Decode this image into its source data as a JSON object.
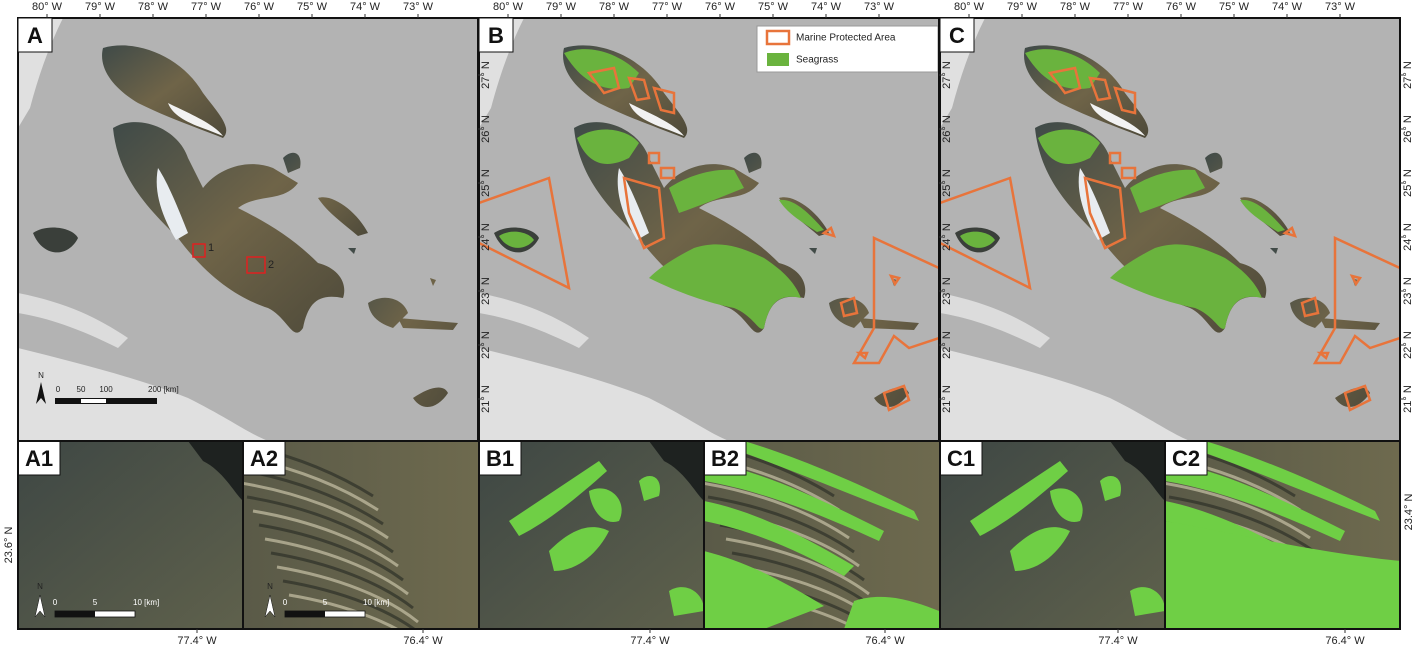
{
  "longitude_labels": [
    "80° W",
    "79° W",
    "78° W",
    "77° W",
    "76° W",
    "75° W",
    "74° W",
    "73° W"
  ],
  "latitude_labels": [
    "27° N",
    "26° N",
    "25° N",
    "24° N",
    "23° N",
    "22° N",
    "21° N"
  ],
  "panels": [
    "A",
    "B",
    "C"
  ],
  "inset_panels": [
    "A1",
    "A2",
    "B1",
    "B2",
    "C1",
    "C2"
  ],
  "inset_longitude_labels": [
    "77.4° W",
    "76.4° W"
  ],
  "inset_latitude_labels": [
    "23.6° N",
    "23.4° N"
  ],
  "legend": [
    "Marine Protected Area",
    "Seagrass"
  ],
  "box_labels": [
    "1",
    "2"
  ],
  "scale_main": {
    "north": "N",
    "labels": [
      "0",
      "50",
      "100",
      "200 [km]"
    ]
  },
  "scale_inset": {
    "north": "N",
    "labels": [
      "0",
      "5",
      "10 [km]"
    ]
  }
}
